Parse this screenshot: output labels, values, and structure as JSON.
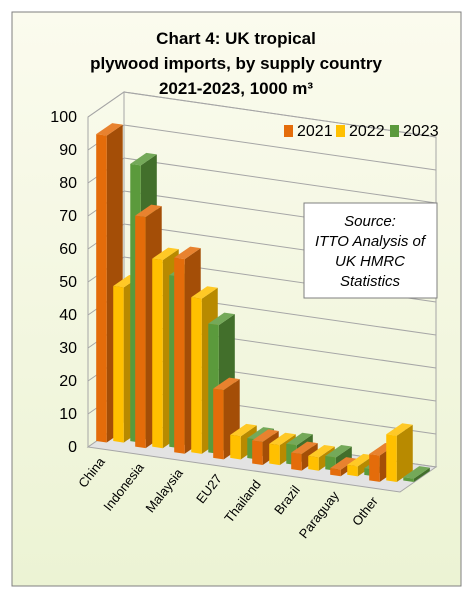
{
  "chart_data": {
    "type": "bar",
    "title": "Chart 4: UK tropical plywood imports, by supply country 2021-2023, 1000 m³",
    "title_lines": [
      "Chart 4: UK tropical",
      "plywood imports, by supply country",
      "2021-2023, 1000 m³"
    ],
    "categories": [
      "China",
      "Indonesia",
      "Malaysia",
      "EU27",
      "Thailand",
      "Brazil",
      "Paraguay",
      "Other"
    ],
    "series": [
      {
        "name": "2021",
        "color": "#E46C0A",
        "values": [
          93,
          70,
          59,
          21,
          7,
          5,
          2,
          8
        ]
      },
      {
        "name": "2022",
        "color": "#FFC000",
        "values": [
          47,
          57,
          47,
          7,
          6,
          4,
          3,
          14
        ]
      },
      {
        "name": "2023",
        "color": "#5B9A3C",
        "values": [
          84,
          52,
          39,
          6,
          6,
          4,
          2,
          1
        ]
      }
    ],
    "ylim": [
      0,
      100
    ],
    "yticks": [
      "0",
      "10",
      "20",
      "30",
      "40",
      "50",
      "60",
      "70",
      "80",
      "90",
      "100"
    ],
    "legend_position": "top-right",
    "grid": true,
    "annotation": [
      "Source:",
      "ITTO Analysis of",
      "UK HMRC",
      "Statistics"
    ]
  }
}
